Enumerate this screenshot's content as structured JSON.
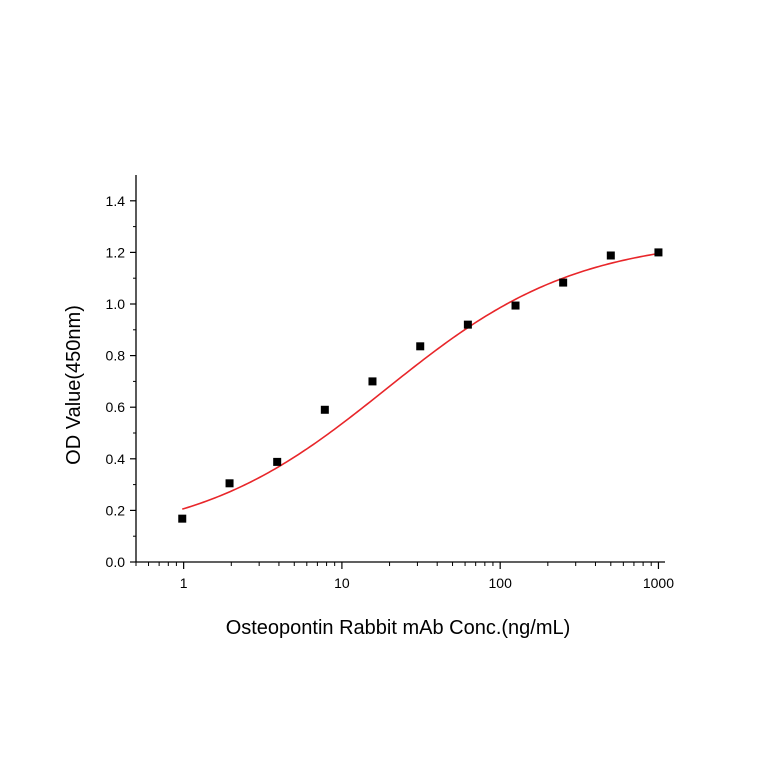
{
  "chart_data": {
    "type": "scatter",
    "title": "",
    "xlabel": "Osteopontin Rabbit mAb Conc.(ng/mL)",
    "ylabel": "OD Value(450nm)",
    "xscale": "log",
    "xlim": [
      0.5,
      1100
    ],
    "ylim": [
      0.0,
      1.5
    ],
    "xticks": [
      1,
      10,
      100,
      1000
    ],
    "xtick_labels": [
      "1",
      "10",
      "100",
      "1000"
    ],
    "yticks": [
      0.0,
      0.2,
      0.4,
      0.6,
      0.8,
      1.0,
      1.2,
      1.4
    ],
    "ytick_labels": [
      "0.0",
      "0.2",
      "0.4",
      "0.6",
      "0.8",
      "1.0",
      "1.2",
      "1.4"
    ],
    "grid": false,
    "legend": "none",
    "marker_color": "#000000",
    "fit_color": "#e8262a",
    "points": {
      "x": [
        0.98,
        1.95,
        3.9,
        7.8,
        15.6,
        31.25,
        62.5,
        125,
        250,
        500,
        1000
      ],
      "y": [
        0.168,
        0.305,
        0.388,
        0.59,
        0.7,
        0.836,
        0.92,
        0.994,
        1.083,
        1.188,
        1.2
      ]
    },
    "fit_curve": {
      "type": "4PL",
      "bottom": 0.08,
      "top": 1.26,
      "ec50": 19,
      "hill": 0.72,
      "x_range": [
        0.98,
        1000
      ]
    }
  }
}
